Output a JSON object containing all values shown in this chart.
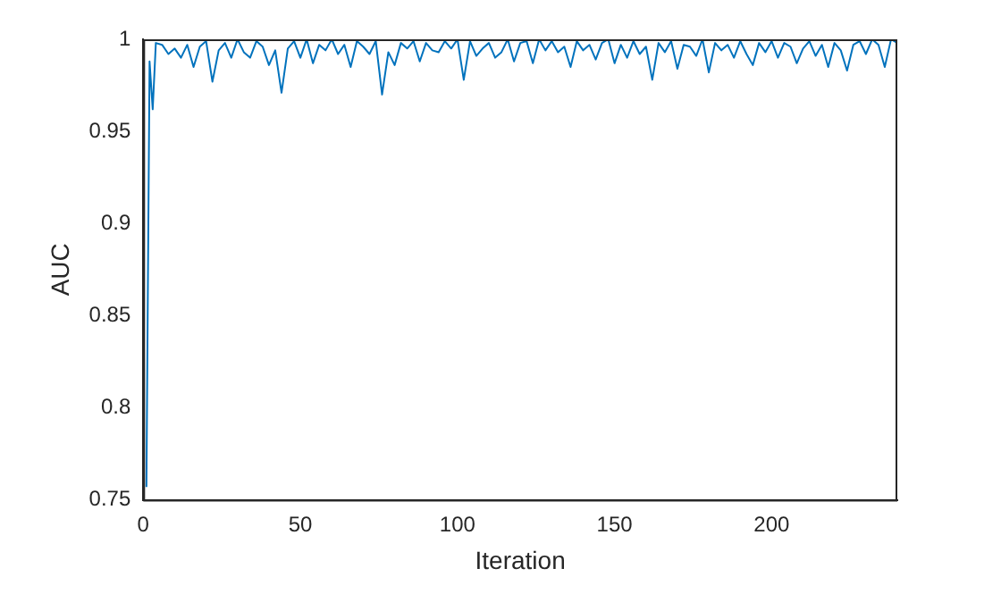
{
  "chart_data": {
    "type": "line",
    "xlabel": "Iteration",
    "ylabel": "AUC",
    "xlim": [
      0,
      240
    ],
    "ylim": [
      0.75,
      1
    ],
    "xticks": [
      0,
      50,
      100,
      150,
      200
    ],
    "yticks": [
      0.75,
      0.8,
      0.85,
      0.9,
      0.95,
      1
    ],
    "grid": false,
    "legend": false,
    "line_style": "solid",
    "marker": "none",
    "x": [
      1,
      2,
      3,
      4,
      6,
      8,
      10,
      12,
      14,
      16,
      18,
      20,
      22,
      24,
      26,
      28,
      30,
      32,
      34,
      36,
      38,
      40,
      42,
      44,
      46,
      48,
      50,
      52,
      54,
      56,
      58,
      60,
      62,
      64,
      66,
      68,
      70,
      72,
      74,
      76,
      78,
      80,
      82,
      84,
      86,
      88,
      90,
      92,
      94,
      96,
      98,
      100,
      102,
      104,
      106,
      108,
      110,
      112,
      114,
      116,
      118,
      120,
      122,
      124,
      126,
      128,
      130,
      132,
      134,
      136,
      138,
      140,
      142,
      144,
      146,
      148,
      150,
      152,
      154,
      156,
      158,
      160,
      162,
      164,
      166,
      168,
      170,
      172,
      174,
      176,
      178,
      180,
      182,
      184,
      186,
      188,
      190,
      192,
      194,
      196,
      198,
      200,
      202,
      204,
      206,
      208,
      210,
      212,
      214,
      216,
      218,
      220,
      222,
      224,
      226,
      228,
      230,
      232,
      234,
      236,
      238,
      240
    ],
    "series": [
      {
        "color": "#0072bd",
        "values": [
          0.757,
          0.988,
          0.962,
          0.998,
          0.997,
          0.992,
          0.995,
          0.99,
          0.997,
          0.985,
          0.996,
          0.999,
          0.977,
          0.994,
          0.998,
          0.99,
          1.0,
          0.993,
          0.99,
          0.999,
          0.996,
          0.986,
          0.994,
          0.971,
          0.995,
          0.999,
          0.99,
          1.0,
          0.987,
          0.997,
          0.994,
          1.0,
          0.992,
          0.997,
          0.985,
          0.999,
          0.996,
          0.992,
          0.999,
          0.97,
          0.993,
          0.986,
          0.998,
          0.995,
          0.999,
          0.988,
          0.998,
          0.994,
          0.993,
          0.999,
          0.995,
          1.0,
          0.978,
          0.999,
          0.991,
          0.995,
          0.998,
          0.99,
          0.993,
          1.0,
          0.988,
          0.998,
          0.999,
          0.987,
          1.0,
          0.994,
          0.999,
          0.993,
          0.996,
          0.985,
          0.999,
          0.994,
          0.997,
          0.989,
          0.998,
          1.0,
          0.987,
          0.997,
          0.99,
          0.999,
          0.992,
          0.996,
          0.978,
          0.998,
          0.993,
          0.999,
          0.984,
          0.997,
          0.996,
          0.991,
          1.0,
          0.982,
          0.998,
          0.994,
          0.997,
          0.99,
          0.999,
          0.992,
          0.986,
          0.998,
          0.993,
          0.999,
          0.99,
          0.998,
          0.996,
          0.987,
          0.995,
          0.999,
          0.991,
          0.997,
          0.985,
          0.998,
          0.994,
          0.983,
          0.997,
          0.999,
          0.992,
          1.0,
          0.997,
          0.985,
          1.0,
          0.998
        ]
      }
    ]
  }
}
